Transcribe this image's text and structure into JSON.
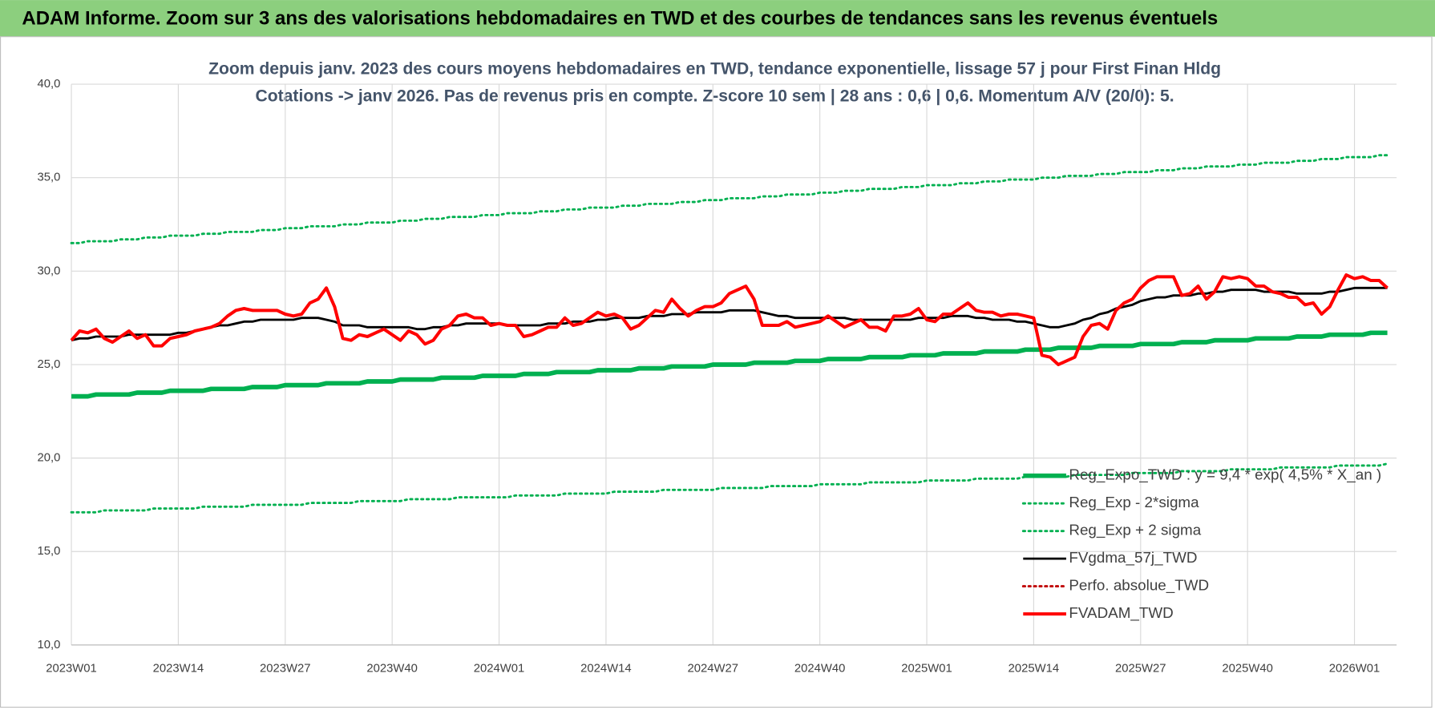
{
  "chart_data": {
    "type": "line",
    "header": "ADAM Informe. Zoom sur 3 ans des valorisations hebdomadaires en TWD et des courbes de tendances sans les revenus éventuels",
    "title": "Zoom depuis janv. 2023 des cours moyens hebdomadaires en TWD, tendance exponentielle, lissage 57 j pour First Finan Hldg",
    "subtitle": "Cotations -> janv 2026. Pas de revenus pris en compte. Z-score 10 sem | 28 ans : 0,6 | 0,6. Momentum A/V (20/0): 5.",
    "categories": [
      "2023W01",
      null,
      null,
      null,
      null,
      null,
      null,
      null,
      null,
      null,
      null,
      null,
      null,
      "2023W14",
      null,
      null,
      null,
      null,
      null,
      null,
      null,
      null,
      null,
      null,
      null,
      null,
      "2023W27",
      null,
      null,
      null,
      null,
      null,
      null,
      null,
      null,
      null,
      null,
      null,
      null,
      "2023W40",
      null,
      null,
      null,
      null,
      null,
      null,
      null,
      null,
      null,
      null,
      null,
      null,
      "2024W01",
      null,
      null,
      null,
      null,
      null,
      null,
      null,
      null,
      null,
      null,
      null,
      null,
      "2024W14",
      null,
      null,
      null,
      null,
      null,
      null,
      null,
      null,
      null,
      null,
      null,
      null,
      "2024W27",
      null,
      null,
      null,
      null,
      null,
      null,
      null,
      null,
      null,
      null,
      null,
      null,
      "2024W40",
      null,
      null,
      null,
      null,
      null,
      null,
      null,
      null,
      null,
      null,
      null,
      null,
      "2025W01",
      null,
      null,
      null,
      null,
      null,
      null,
      null,
      null,
      null,
      null,
      null,
      null,
      "2025W14",
      null,
      null,
      null,
      null,
      null,
      null,
      null,
      null,
      null,
      null,
      null,
      null,
      "2025W27",
      null,
      null,
      null,
      null,
      null,
      null,
      null,
      null,
      null,
      null,
      null,
      null,
      "2025W40",
      null,
      null,
      null,
      null,
      null,
      null,
      null,
      null,
      null,
      null,
      null,
      null,
      "2026W01",
      null,
      null,
      null,
      null
    ],
    "ylim": [
      10,
      40
    ],
    "yticks": [
      {
        "value": 10,
        "label": "10,0"
      },
      {
        "value": 15,
        "label": "15,0"
      },
      {
        "value": 20,
        "label": "20,0"
      },
      {
        "value": 25,
        "label": "25,0"
      },
      {
        "value": 30,
        "label": "30,0"
      },
      {
        "value": 35,
        "label": "35,0"
      },
      {
        "value": 40,
        "label": "40,0"
      }
    ],
    "grid": true,
    "legend": "bottom-right",
    "series": [
      {
        "name": "Reg_Expo_TWD : y = 9,4 * exp( 4,5% *  X_an )",
        "color": "#00b050",
        "style": "solid",
        "values": [
          23.3,
          23.3,
          23.3,
          23.4,
          23.4,
          23.4,
          23.4,
          23.4,
          23.5,
          23.5,
          23.5,
          23.5,
          23.6,
          23.6,
          23.6,
          23.6,
          23.6,
          23.7,
          23.7,
          23.7,
          23.7,
          23.7,
          23.8,
          23.8,
          23.8,
          23.8,
          23.9,
          23.9,
          23.9,
          23.9,
          23.9,
          24.0,
          24.0,
          24.0,
          24.0,
          24.0,
          24.1,
          24.1,
          24.1,
          24.1,
          24.2,
          24.2,
          24.2,
          24.2,
          24.2,
          24.3,
          24.3,
          24.3,
          24.3,
          24.3,
          24.4,
          24.4,
          24.4,
          24.4,
          24.4,
          24.5,
          24.5,
          24.5,
          24.5,
          24.6,
          24.6,
          24.6,
          24.6,
          24.6,
          24.7,
          24.7,
          24.7,
          24.7,
          24.7,
          24.8,
          24.8,
          24.8,
          24.8,
          24.9,
          24.9,
          24.9,
          24.9,
          24.9,
          25.0,
          25.0,
          25.0,
          25.0,
          25.0,
          25.1,
          25.1,
          25.1,
          25.1,
          25.1,
          25.2,
          25.2,
          25.2,
          25.2,
          25.3,
          25.3,
          25.3,
          25.3,
          25.3,
          25.4,
          25.4,
          25.4,
          25.4,
          25.4,
          25.5,
          25.5,
          25.5,
          25.5,
          25.6,
          25.6,
          25.6,
          25.6,
          25.6,
          25.7,
          25.7,
          25.7,
          25.7,
          25.7,
          25.8,
          25.8,
          25.8,
          25.8,
          25.9,
          25.9,
          25.9,
          25.9,
          25.9,
          26.0,
          26.0,
          26.0,
          26.0,
          26.0,
          26.1,
          26.1,
          26.1,
          26.1,
          26.1,
          26.2,
          26.2,
          26.2,
          26.2,
          26.3,
          26.3,
          26.3,
          26.3,
          26.3,
          26.4,
          26.4,
          26.4,
          26.4,
          26.4,
          26.5,
          26.5,
          26.5,
          26.5,
          26.6,
          26.6,
          26.6,
          26.6,
          26.6,
          26.7,
          26.7,
          26.7
        ]
      },
      {
        "name": "Reg_Exp - 2*sigma",
        "color": "#00b050",
        "style": "dotted",
        "values": [
          17.1,
          17.1,
          17.1,
          17.1,
          17.2,
          17.2,
          17.2,
          17.2,
          17.2,
          17.2,
          17.3,
          17.3,
          17.3,
          17.3,
          17.3,
          17.3,
          17.4,
          17.4,
          17.4,
          17.4,
          17.4,
          17.4,
          17.5,
          17.5,
          17.5,
          17.5,
          17.5,
          17.5,
          17.5,
          17.6,
          17.6,
          17.6,
          17.6,
          17.6,
          17.6,
          17.7,
          17.7,
          17.7,
          17.7,
          17.7,
          17.7,
          17.8,
          17.8,
          17.8,
          17.8,
          17.8,
          17.8,
          17.9,
          17.9,
          17.9,
          17.9,
          17.9,
          17.9,
          17.9,
          18.0,
          18.0,
          18.0,
          18.0,
          18.0,
          18.0,
          18.1,
          18.1,
          18.1,
          18.1,
          18.1,
          18.1,
          18.2,
          18.2,
          18.2,
          18.2,
          18.2,
          18.2,
          18.3,
          18.3,
          18.3,
          18.3,
          18.3,
          18.3,
          18.3,
          18.4,
          18.4,
          18.4,
          18.4,
          18.4,
          18.4,
          18.5,
          18.5,
          18.5,
          18.5,
          18.5,
          18.5,
          18.6,
          18.6,
          18.6,
          18.6,
          18.6,
          18.6,
          18.7,
          18.7,
          18.7,
          18.7,
          18.7,
          18.7,
          18.7,
          18.8,
          18.8,
          18.8,
          18.8,
          18.8,
          18.8,
          18.9,
          18.9,
          18.9,
          18.9,
          18.9,
          18.9,
          19.0,
          19.0,
          19.0,
          19.0,
          19.0,
          19.0,
          19.1,
          19.1,
          19.1,
          19.1,
          19.1,
          19.1,
          19.1,
          19.2,
          19.2,
          19.2,
          19.2,
          19.2,
          19.2,
          19.3,
          19.3,
          19.3,
          19.3,
          19.3,
          19.3,
          19.4,
          19.4,
          19.4,
          19.4,
          19.4,
          19.4,
          19.5,
          19.5,
          19.5,
          19.5,
          19.5,
          19.5,
          19.5,
          19.6,
          19.6,
          19.6,
          19.6,
          19.6,
          19.6,
          19.7
        ]
      },
      {
        "name": "Reg_Exp + 2 sigma",
        "color": "#00b050",
        "style": "dotted",
        "values": [
          31.5,
          31.5,
          31.6,
          31.6,
          31.6,
          31.6,
          31.7,
          31.7,
          31.7,
          31.8,
          31.8,
          31.8,
          31.9,
          31.9,
          31.9,
          31.9,
          32.0,
          32.0,
          32.0,
          32.1,
          32.1,
          32.1,
          32.1,
          32.2,
          32.2,
          32.2,
          32.3,
          32.3,
          32.3,
          32.4,
          32.4,
          32.4,
          32.4,
          32.5,
          32.5,
          32.5,
          32.6,
          32.6,
          32.6,
          32.6,
          32.7,
          32.7,
          32.7,
          32.8,
          32.8,
          32.8,
          32.9,
          32.9,
          32.9,
          32.9,
          33.0,
          33.0,
          33.0,
          33.1,
          33.1,
          33.1,
          33.1,
          33.2,
          33.2,
          33.2,
          33.3,
          33.3,
          33.3,
          33.4,
          33.4,
          33.4,
          33.4,
          33.5,
          33.5,
          33.5,
          33.6,
          33.6,
          33.6,
          33.6,
          33.7,
          33.7,
          33.7,
          33.8,
          33.8,
          33.8,
          33.9,
          33.9,
          33.9,
          33.9,
          34.0,
          34.0,
          34.0,
          34.1,
          34.1,
          34.1,
          34.1,
          34.2,
          34.2,
          34.2,
          34.3,
          34.3,
          34.3,
          34.4,
          34.4,
          34.4,
          34.4,
          34.5,
          34.5,
          34.5,
          34.6,
          34.6,
          34.6,
          34.6,
          34.7,
          34.7,
          34.7,
          34.8,
          34.8,
          34.8,
          34.9,
          34.9,
          34.9,
          34.9,
          35.0,
          35.0,
          35.0,
          35.1,
          35.1,
          35.1,
          35.1,
          35.2,
          35.2,
          35.2,
          35.3,
          35.3,
          35.3,
          35.3,
          35.4,
          35.4,
          35.4,
          35.5,
          35.5,
          35.5,
          35.6,
          35.6,
          35.6,
          35.6,
          35.7,
          35.7,
          35.7,
          35.8,
          35.8,
          35.8,
          35.8,
          35.9,
          35.9,
          35.9,
          36.0,
          36.0,
          36.0,
          36.1,
          36.1,
          36.1,
          36.1,
          36.2,
          36.2
        ]
      },
      {
        "name": "FVgdma_57j_TWD",
        "color": "#000000",
        "style": "solid",
        "values": [
          26.3,
          26.4,
          26.4,
          26.5,
          26.5,
          26.5,
          26.5,
          26.6,
          26.6,
          26.6,
          26.6,
          26.6,
          26.6,
          26.7,
          26.7,
          26.8,
          26.9,
          27.0,
          27.1,
          27.1,
          27.2,
          27.3,
          27.3,
          27.4,
          27.4,
          27.4,
          27.4,
          27.4,
          27.5,
          27.5,
          27.5,
          27.4,
          27.3,
          27.1,
          27.1,
          27.1,
          27.0,
          27.0,
          27.0,
          27.0,
          27.0,
          27.0,
          26.9,
          26.9,
          27.0,
          27.0,
          27.1,
          27.1,
          27.2,
          27.2,
          27.2,
          27.2,
          27.2,
          27.1,
          27.1,
          27.1,
          27.1,
          27.1,
          27.2,
          27.2,
          27.2,
          27.3,
          27.3,
          27.3,
          27.4,
          27.4,
          27.5,
          27.5,
          27.5,
          27.5,
          27.6,
          27.6,
          27.6,
          27.7,
          27.7,
          27.7,
          27.8,
          27.8,
          27.8,
          27.8,
          27.9,
          27.9,
          27.9,
          27.9,
          27.8,
          27.7,
          27.6,
          27.6,
          27.5,
          27.5,
          27.5,
          27.5,
          27.5,
          27.5,
          27.5,
          27.4,
          27.4,
          27.4,
          27.4,
          27.4,
          27.4,
          27.4,
          27.4,
          27.5,
          27.5,
          27.5,
          27.5,
          27.6,
          27.6,
          27.6,
          27.5,
          27.5,
          27.4,
          27.4,
          27.4,
          27.3,
          27.3,
          27.2,
          27.1,
          27.0,
          27.0,
          27.1,
          27.2,
          27.4,
          27.5,
          27.7,
          27.8,
          28.0,
          28.1,
          28.2,
          28.4,
          28.5,
          28.6,
          28.6,
          28.7,
          28.7,
          28.7,
          28.8,
          28.8,
          28.9,
          28.9,
          29.0,
          29.0,
          29.0,
          29.0,
          28.9,
          28.9,
          28.9,
          28.9,
          28.8,
          28.8,
          28.8,
          28.8,
          28.9,
          28.9,
          29.0,
          29.1,
          29.1,
          29.1,
          29.1,
          29.1
        ]
      },
      {
        "name": "Perfo. absolue_TWD",
        "color": "#c00000",
        "style": "dotted"
      },
      {
        "name": "FVADAM_TWD",
        "color": "#ff0000",
        "style": "solid",
        "values": [
          26.3,
          26.8,
          26.7,
          26.9,
          26.4,
          26.2,
          26.5,
          26.8,
          26.4,
          26.6,
          26.0,
          26.0,
          26.4,
          26.5,
          26.6,
          26.8,
          26.9,
          27.0,
          27.2,
          27.6,
          27.9,
          28.0,
          27.9,
          27.9,
          27.9,
          27.9,
          27.7,
          27.6,
          27.7,
          28.3,
          28.5,
          29.1,
          28.1,
          26.4,
          26.3,
          26.6,
          26.5,
          26.7,
          26.9,
          26.6,
          26.3,
          26.8,
          26.6,
          26.1,
          26.3,
          26.9,
          27.1,
          27.6,
          27.7,
          27.5,
          27.5,
          27.1,
          27.2,
          27.1,
          27.1,
          26.5,
          26.6,
          26.8,
          27.0,
          27.0,
          27.5,
          27.1,
          27.2,
          27.5,
          27.8,
          27.6,
          27.7,
          27.5,
          26.9,
          27.1,
          27.5,
          27.9,
          27.8,
          28.5,
          28.0,
          27.6,
          27.9,
          28.1,
          28.1,
          28.3,
          28.8,
          29.0,
          29.2,
          28.5,
          27.1,
          27.1,
          27.1,
          27.3,
          27.0,
          27.1,
          27.2,
          27.3,
          27.6,
          27.3,
          27.0,
          27.2,
          27.4,
          27.0,
          27.0,
          26.8,
          27.6,
          27.6,
          27.7,
          28.0,
          27.4,
          27.3,
          27.7,
          27.7,
          28.0,
          28.3,
          27.9,
          27.8,
          27.8,
          27.6,
          27.7,
          27.7,
          27.6,
          27.5,
          25.5,
          25.4,
          25.0,
          25.2,
          25.4,
          26.5,
          27.1,
          27.2,
          26.9,
          27.9,
          28.3,
          28.5,
          29.1,
          29.5,
          29.7,
          29.7,
          29.7,
          28.7,
          28.8,
          29.2,
          28.5,
          28.9,
          29.7,
          29.6,
          29.7,
          29.6,
          29.2,
          29.2,
          28.9,
          28.8,
          28.6,
          28.6,
          28.2,
          28.3,
          27.7,
          28.1,
          29.0,
          29.8,
          29.6,
          29.7,
          29.5,
          29.5,
          29.1
        ]
      }
    ]
  }
}
